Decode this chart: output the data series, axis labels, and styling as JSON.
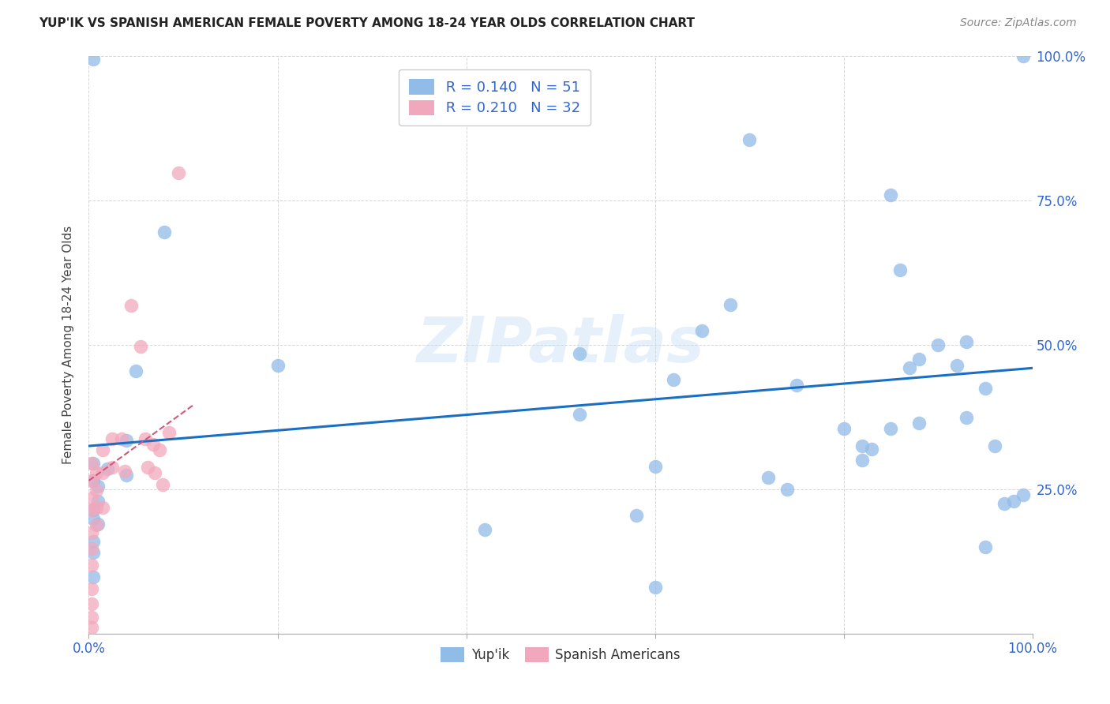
{
  "title": "YUP'IK VS SPANISH AMERICAN FEMALE POVERTY AMONG 18-24 YEAR OLDS CORRELATION CHART",
  "source": "Source: ZipAtlas.com",
  "ylabel": "Female Poverty Among 18-24 Year Olds",
  "xlim": [
    0,
    1.0
  ],
  "ylim": [
    0,
    1.0
  ],
  "xticks": [
    0.0,
    0.2,
    0.4,
    0.6,
    0.8,
    1.0
  ],
  "yticks": [
    0.0,
    0.25,
    0.5,
    0.75,
    1.0
  ],
  "xticklabels": [
    "0.0%",
    "",
    "",
    "",
    "",
    "100.0%"
  ],
  "yticklabels_right": [
    "",
    "25.0%",
    "50.0%",
    "75.0%",
    "100.0%"
  ],
  "legend_R1": "R = 0.140",
  "legend_N1": "N = 51",
  "legend_R2": "R = 0.210",
  "legend_N2": "N = 32",
  "blue_color": "#92bce8",
  "pink_color": "#f2a8bc",
  "trendline_blue_color": "#1a6fc4",
  "trendline_pink_color": "#d05878",
  "watermark": "ZIPatlas",
  "blue_x": [
    0.04,
    0.04,
    0.005,
    0.005,
    0.01,
    0.02,
    0.01,
    0.01,
    0.005,
    0.005,
    0.005,
    0.005,
    0.005,
    0.05,
    0.08,
    0.2,
    0.005,
    0.52,
    0.52,
    0.65,
    0.7,
    0.72,
    0.74,
    0.82,
    0.83,
    0.85,
    0.85,
    0.86,
    0.87,
    0.88,
    0.9,
    0.92,
    0.93,
    0.93,
    0.95,
    0.95,
    0.96,
    0.97,
    0.98,
    0.99,
    0.62,
    0.6,
    0.75,
    0.8,
    0.82,
    0.88,
    0.68,
    0.58,
    0.42,
    0.6,
    0.99
  ],
  "blue_y": [
    0.335,
    0.275,
    0.295,
    0.265,
    0.255,
    0.285,
    0.23,
    0.19,
    0.215,
    0.2,
    0.16,
    0.14,
    0.098,
    0.455,
    0.695,
    0.465,
    0.995,
    0.38,
    0.485,
    0.525,
    0.855,
    0.27,
    0.25,
    0.325,
    0.32,
    0.355,
    0.76,
    0.63,
    0.46,
    0.475,
    0.5,
    0.465,
    0.375,
    0.505,
    0.425,
    0.15,
    0.325,
    0.225,
    0.23,
    1.0,
    0.44,
    0.29,
    0.43,
    0.355,
    0.3,
    0.365,
    0.57,
    0.205,
    0.18,
    0.08,
    0.24
  ],
  "pink_x": [
    0.003,
    0.003,
    0.003,
    0.003,
    0.003,
    0.003,
    0.003,
    0.003,
    0.003,
    0.003,
    0.003,
    0.008,
    0.008,
    0.008,
    0.008,
    0.015,
    0.015,
    0.015,
    0.025,
    0.025,
    0.035,
    0.038,
    0.045,
    0.055,
    0.06,
    0.062,
    0.068,
    0.07,
    0.075,
    0.078,
    0.085,
    0.095
  ],
  "pink_y": [
    0.295,
    0.265,
    0.235,
    0.215,
    0.175,
    0.148,
    0.118,
    0.078,
    0.052,
    0.028,
    0.01,
    0.278,
    0.248,
    0.218,
    0.188,
    0.318,
    0.278,
    0.218,
    0.338,
    0.288,
    0.338,
    0.282,
    0.568,
    0.498,
    0.338,
    0.288,
    0.328,
    0.278,
    0.318,
    0.258,
    0.348,
    0.798
  ],
  "blue_trend_x": [
    0.0,
    1.0
  ],
  "blue_trend_y": [
    0.325,
    0.46
  ],
  "pink_trend_x": [
    0.0,
    0.11
  ],
  "pink_trend_y": [
    0.265,
    0.395
  ]
}
